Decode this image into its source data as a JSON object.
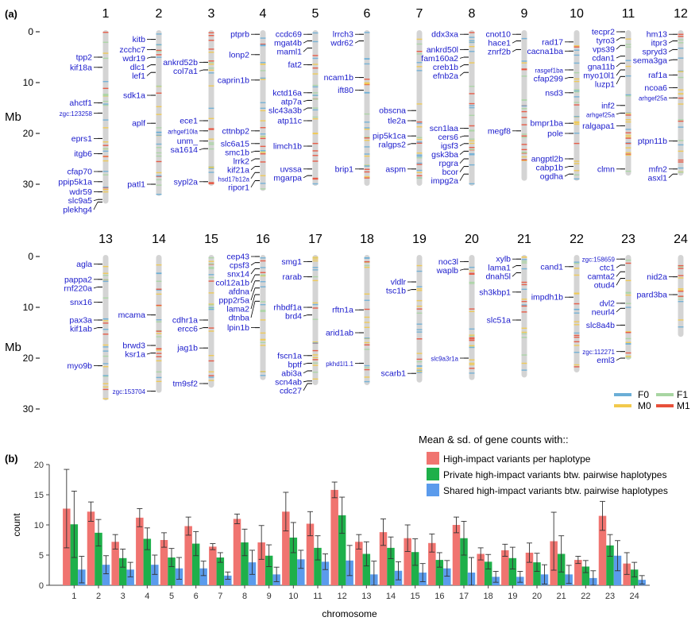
{
  "panel_a": {
    "label": "(a)",
    "ylabel": "Mb",
    "yticks": [
      "0",
      "10",
      "20",
      "30"
    ],
    "legend": [
      {
        "name": "F0",
        "color": "#6baed6"
      },
      {
        "name": "F1",
        "color": "#a8d5a2"
      },
      {
        "name": "M0",
        "color": "#f2c94c"
      },
      {
        "name": "M1",
        "color": "#e8503a"
      }
    ]
  },
  "chromosomes": [
    {
      "num": "1",
      "length": 33.5,
      "genes": [
        [
          "tpp2",
          5
        ],
        [
          "kif18a",
          7
        ],
        [
          "ahctf1",
          14
        ],
        [
          "zgc:123258",
          16
        ],
        [
          "eprs1",
          21
        ],
        [
          "itgb6",
          24
        ],
        [
          "cfap70",
          27.5
        ],
        [
          "ppip5k1a",
          29.5
        ],
        [
          "wdr59",
          31.5
        ],
        [
          "slc9a5",
          33
        ],
        [
          "plekhg4",
          35
        ]
      ]
    },
    {
      "num": "2",
      "length": 32,
      "genes": [
        [
          "kitb",
          1.5
        ],
        [
          "zcchc7",
          3.5
        ],
        [
          "wdr19",
          5
        ],
        [
          "dlc1",
          6.5
        ],
        [
          "lef1",
          8
        ],
        [
          "sdk1a",
          12.5
        ],
        [
          "aplf",
          18
        ],
        [
          "patl1",
          30
        ]
      ]
    },
    {
      "num": "3",
      "length": 30,
      "genes": [
        [
          "ankrd52b",
          6
        ],
        [
          "col7a1",
          7.5
        ],
        [
          "ece1",
          17.5
        ],
        [
          "arhgef10la",
          19.5
        ],
        [
          "unm_",
          21.5
        ],
        [
          "sa1614",
          23
        ],
        [
          "sypl2a",
          29.5
        ]
      ]
    },
    {
      "num": "4",
      "length": 31,
      "genes": [
        [
          "ptprb",
          0.5
        ],
        [
          "lonp2",
          4.5
        ],
        [
          "caprin1b",
          9.5
        ],
        [
          "cttnbp2",
          19.5
        ],
        [
          "slc6a15",
          22
        ],
        [
          "smc1b",
          23.5
        ],
        [
          "lrrk2",
          25
        ],
        [
          "kif21a",
          26.5
        ],
        [
          "hsd17b12a",
          27.7
        ],
        [
          "ripor1",
          29.3
        ]
      ]
    },
    {
      "num": "5",
      "length": 30,
      "genes": [
        [
          "ccdc69",
          0.5
        ],
        [
          "mgat4b",
          1.8
        ],
        [
          "maml1",
          3.2
        ],
        [
          "fat2",
          6.5
        ],
        [
          "kctd16a",
          12
        ],
        [
          "atp7a",
          13.5
        ],
        [
          "slc43a3b",
          15
        ],
        [
          "atp11c",
          17.5
        ],
        [
          "limch1b",
          22.5
        ],
        [
          "uvssa",
          27
        ],
        [
          "mgarpa",
          28.3
        ]
      ]
    },
    {
      "num": "6",
      "length": 30,
      "genes": [
        [
          "lrrch3",
          0.5
        ],
        [
          "wdr62",
          1.8
        ],
        [
          "ncam1b",
          9
        ],
        [
          "ift80",
          11.5
        ],
        [
          "brip1",
          27
        ]
      ]
    },
    {
      "num": "7",
      "length": 30,
      "genes": [
        [
          "obscna",
          15.5
        ],
        [
          "tle2a",
          17.5
        ],
        [
          "pip5k1ca",
          20.5
        ],
        [
          "ralgps2",
          22
        ],
        [
          "aspm",
          27
        ]
      ]
    },
    {
      "num": "8",
      "length": 30,
      "genes": [
        [
          "ddx3xa",
          0.5
        ],
        [
          "ankrd50l",
          3.5
        ],
        [
          "fam160a2",
          5
        ],
        [
          "creb1b",
          6.5
        ],
        [
          "efnb2a",
          8
        ],
        [
          "scn1laa",
          19
        ],
        [
          "cers6",
          20.5
        ],
        [
          "igsf3",
          22
        ],
        [
          "gsk3ba",
          23.5
        ],
        [
          "rpgra",
          25
        ],
        [
          "bcor",
          26.5
        ],
        [
          "impg2a",
          28
        ]
      ]
    },
    {
      "num": "9",
      "length": 29,
      "genes": [
        [
          "cnot10",
          0.5
        ],
        [
          "hace1",
          1.8
        ],
        [
          "znrf2b",
          3.5
        ],
        [
          "megf8",
          19.5
        ]
      ]
    },
    {
      "num": "10",
      "length": 29,
      "genes": [
        [
          "rad17",
          2
        ],
        [
          "cacna1ba",
          3.8
        ],
        [
          "rasgef1ba",
          7.5
        ],
        [
          "cfap299",
          9
        ],
        [
          "nsd3",
          12
        ],
        [
          "bmpr1ba",
          18
        ],
        [
          "pole",
          20
        ],
        [
          "angptl2b",
          25
        ],
        [
          "cabp1b",
          26.5
        ],
        [
          "ogdha",
          28
        ]
      ]
    },
    {
      "num": "11",
      "length": 28,
      "genes": [
        [
          "tecpr2",
          0
        ],
        [
          "tyro3",
          1.2
        ],
        [
          "vps39",
          2.7
        ],
        [
          "cdan1",
          4.8
        ],
        [
          "gna11b",
          6.2
        ],
        [
          "myo10l1",
          7.5
        ],
        [
          "luzp1",
          8.8
        ],
        [
          "inf2",
          14.5
        ],
        [
          "arhgef25a",
          16
        ],
        [
          "ralgapa1",
          18.5
        ],
        [
          "clmn",
          27
        ]
      ]
    },
    {
      "num": "12",
      "length": 28,
      "genes": [
        [
          "hm13",
          0.5
        ],
        [
          "itpr3",
          1.8
        ],
        [
          "spryd3",
          3.5
        ],
        [
          "sema3ga",
          5.5
        ],
        [
          "raf1a",
          8.5
        ],
        [
          "ncoa6",
          11
        ],
        [
          "arhgef25a",
          13
        ],
        [
          "ptpn11b",
          21.5
        ],
        [
          "mfn2",
          27
        ],
        [
          "asxl1",
          28.5
        ]
      ]
    },
    {
      "num": "13",
      "length": 28,
      "genes": [
        [
          "agla",
          1.5
        ],
        [
          "pappa2",
          4.5
        ],
        [
          "rnf220a",
          6
        ],
        [
          "snx16",
          9
        ],
        [
          "pax3a",
          12.5
        ],
        [
          "kif1ab",
          14
        ],
        [
          "myo9b",
          21.5
        ]
      ]
    },
    {
      "num": "14",
      "length": 26.5,
      "genes": [
        [
          "mcama",
          11.5
        ],
        [
          "brwd3",
          17.5
        ],
        [
          "ksr1a",
          19
        ],
        [
          "zgc:153704",
          26.5
        ]
      ]
    },
    {
      "num": "15",
      "length": 25.5,
      "genes": [
        [
          "cdhr1a",
          12.5
        ],
        [
          "ercc6",
          14
        ],
        [
          "jag1b",
          18
        ],
        [
          "tm9sf2",
          25
        ]
      ]
    },
    {
      "num": "16",
      "length": 24,
      "genes": [
        [
          "cep43",
          0
        ],
        [
          "cpsf3",
          1.2
        ],
        [
          "snx14",
          2.4
        ],
        [
          "col12a1b",
          3.6
        ],
        [
          "afdna",
          4.8
        ],
        [
          "ppp2r5a",
          6.2
        ],
        [
          "lama2",
          7.5
        ],
        [
          "dtnba",
          8.8
        ],
        [
          "lpin1b",
          14
        ]
      ]
    },
    {
      "num": "17",
      "length": 25,
      "genes": [
        [
          "smg1",
          1
        ],
        [
          "rarab",
          4
        ],
        [
          "rhbdf1a",
          10
        ],
        [
          "brd4",
          11.5
        ],
        [
          "fscn1a",
          19.5
        ],
        [
          "bptf",
          21
        ],
        [
          "abi3a",
          22.5
        ],
        [
          "scn4ab",
          24.5
        ],
        [
          "cdc27",
          26
        ]
      ]
    },
    {
      "num": "18",
      "length": 25,
      "genes": [
        [
          "rftn1a",
          10.5
        ],
        [
          "arid1ab",
          15
        ],
        [
          "pkhd1l1.1",
          21
        ]
      ]
    },
    {
      "num": "19",
      "length": 24.5,
      "genes": [
        [
          "vldlr",
          5
        ],
        [
          "tsc1b",
          6.5
        ],
        [
          "scarb1",
          23
        ]
      ]
    },
    {
      "num": "20",
      "length": 24,
      "genes": [
        [
          "noc3l",
          1
        ],
        [
          "waplb",
          2.5
        ],
        [
          "slc9a3r1a",
          20
        ]
      ]
    },
    {
      "num": "21",
      "length": 23.5,
      "genes": [
        [
          "xylb",
          0.5
        ],
        [
          "lama1",
          1.8
        ],
        [
          "dnah5l",
          3.2
        ],
        [
          "sh3kbp1",
          7
        ],
        [
          "slc51a",
          12.5
        ]
      ]
    },
    {
      "num": "22",
      "length": 22.5,
      "genes": [
        [
          "cand1",
          2
        ],
        [
          "impdh1b",
          8
        ]
      ]
    },
    {
      "num": "23",
      "length": 20,
      "genes": [
        [
          "zgc:158659",
          0.5
        ],
        [
          "ctc1",
          1.7
        ],
        [
          "camta2",
          3
        ],
        [
          "otud4",
          4.3
        ],
        [
          "dvl2",
          9.2
        ],
        [
          "neurl4",
          10.2
        ],
        [
          "slc8a4b",
          13.5
        ],
        [
          "zgc:112271",
          18.7
        ],
        [
          "eml3",
          20
        ]
      ]
    },
    {
      "num": "24",
      "length": 15.5,
      "genes": [
        [
          "nid2a",
          4
        ],
        [
          "pard3ba",
          7.5
        ]
      ]
    }
  ],
  "panel_b": {
    "label": "(b)"
  },
  "chart_data": {
    "type": "bar",
    "title": "Mean & sd. of gene counts with::",
    "xlabel": "chromosome",
    "ylabel": "count",
    "ylim": [
      0,
      20
    ],
    "yticks": [
      "0",
      "5",
      "10",
      "15",
      "20"
    ],
    "categories": [
      "1",
      "2",
      "3",
      "4",
      "5",
      "6",
      "7",
      "8",
      "9",
      "10",
      "11",
      "12",
      "13",
      "14",
      "15",
      "16",
      "17",
      "18",
      "19",
      "20",
      "21",
      "22",
      "23",
      "24"
    ],
    "series": [
      {
        "name": "High-impact variants per haplotype",
        "color": "#f07470",
        "values": [
          12.7,
          12.2,
          7.2,
          11.2,
          7.5,
          9.8,
          6.4,
          11.0,
          7.1,
          12.2,
          10.2,
          15.8,
          7.2,
          8.8,
          7.8,
          7.0,
          10.0,
          5.2,
          5.8,
          5.4,
          7.3,
          4.2,
          11.5,
          3.6
        ],
        "sd": [
          6.5,
          1.6,
          1.2,
          1.5,
          1.2,
          1.5,
          0.5,
          0.8,
          2.8,
          3.2,
          2.0,
          1.3,
          1.2,
          2.2,
          2.2,
          1.5,
          1.3,
          1.0,
          1.0,
          1.6,
          4.8,
          0.6,
          2.4,
          1.8
        ]
      },
      {
        "name": "Private high-impact variants btw. pairwise haplotypes",
        "color": "#1eb04a",
        "values": [
          10.1,
          8.7,
          4.5,
          7.7,
          4.6,
          6.9,
          4.6,
          7.1,
          4.9,
          7.9,
          6.2,
          11.6,
          5.2,
          6.2,
          5.5,
          4.2,
          7.8,
          3.9,
          4.5,
          3.8,
          5.2,
          3.1,
          6.6,
          2.6
        ],
        "sd": [
          5.5,
          2.2,
          1.5,
          1.8,
          1.5,
          2.0,
          0.8,
          2.2,
          1.8,
          2.5,
          2.0,
          3.0,
          2.0,
          1.8,
          2.2,
          1.2,
          2.8,
          1.2,
          1.8,
          1.5,
          3.0,
          1.0,
          1.8,
          1.2
        ]
      },
      {
        "name": "Shared high-impact variants btw. pairwise haplotypes",
        "color": "#5b9bec",
        "values": [
          2.6,
          3.4,
          2.6,
          3.4,
          2.8,
          2.8,
          1.6,
          3.8,
          1.8,
          4.3,
          3.9,
          4.1,
          1.8,
          2.4,
          2.1,
          2.8,
          2.1,
          1.4,
          1.4,
          1.8,
          1.8,
          1.2,
          4.9,
          0.9
        ],
        "sd": [
          2.2,
          1.5,
          1.2,
          1.6,
          1.8,
          1.2,
          0.6,
          2.0,
          1.2,
          1.5,
          1.3,
          2.5,
          2.2,
          1.5,
          1.5,
          1.3,
          2.5,
          0.9,
          0.9,
          1.6,
          1.5,
          1.2,
          2.5,
          0.7
        ]
      }
    ]
  }
}
